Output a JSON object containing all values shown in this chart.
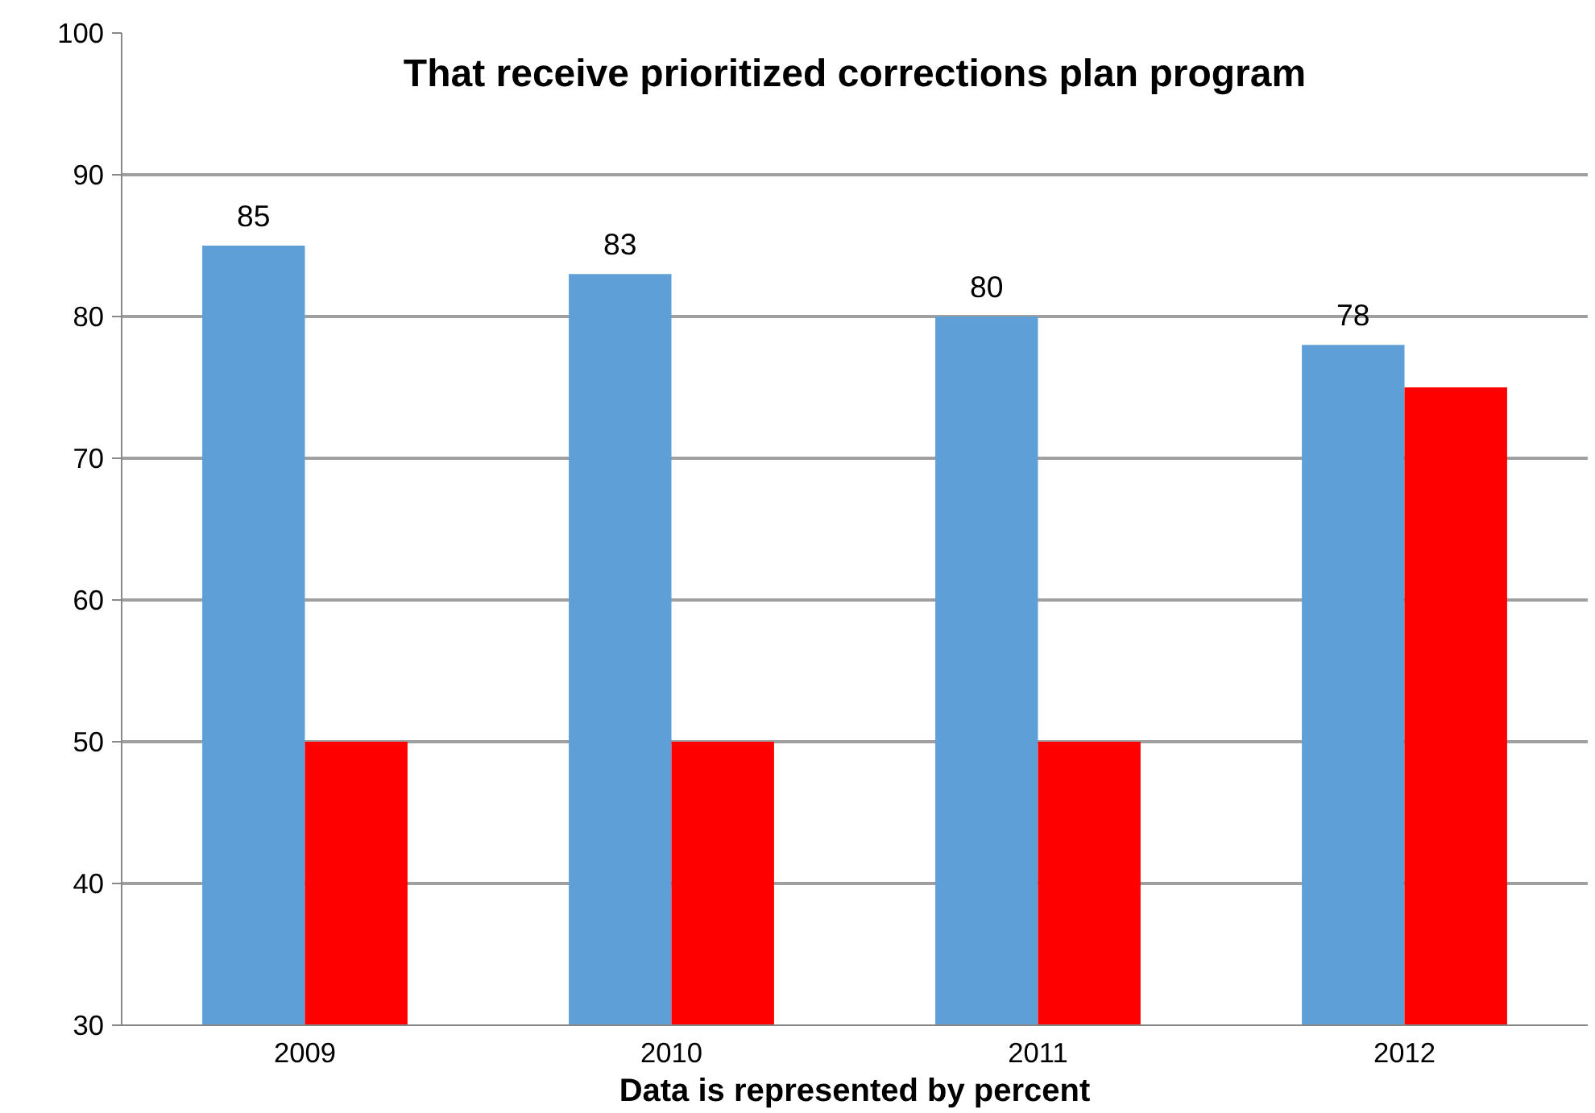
{
  "chart_data": {
    "type": "bar",
    "title": "That receive prioritized corrections plan program",
    "xlabel": "Data is represented by percent",
    "categories": [
      "2009",
      "2010",
      "2011",
      "2012"
    ],
    "series": [
      {
        "color": "#5f9fd8",
        "values": [
          85,
          83,
          80,
          78
        ],
        "value_labels": [
          "85",
          "83",
          "80",
          "78"
        ]
      },
      {
        "color": "#ff0000",
        "values": [
          50,
          50,
          50,
          75
        ]
      }
    ],
    "ylim": [
      30,
      100
    ],
    "yticks": [
      30,
      40,
      50,
      60,
      70,
      80,
      90,
      100
    ],
    "grid": "y"
  }
}
